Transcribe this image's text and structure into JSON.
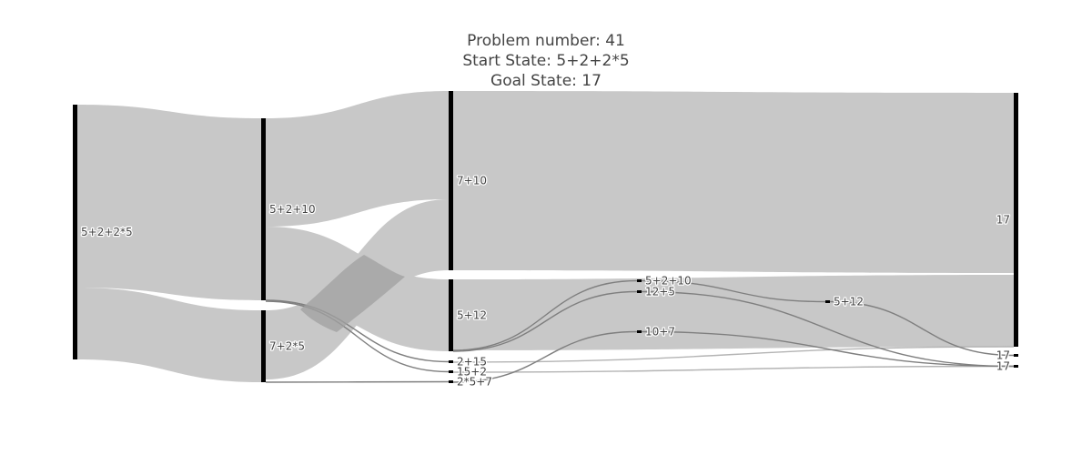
{
  "chart_data": {
    "type": "sankey",
    "title_lines": [
      "Problem number: 41",
      "Start State: 5+2+2*5",
      "Goal State: 17"
    ],
    "colors": {
      "node": "#000000",
      "link": "#c8c8c8",
      "link_highlight": "#a0a0a0",
      "link_thin": "#7f7f7f",
      "text": "#444444",
      "background": "#ffffff"
    },
    "nodes": [
      {
        "id": "n0",
        "label": "5+2+2*5",
        "stage": 0
      },
      {
        "id": "n1",
        "label": "5+2+10",
        "stage": 1
      },
      {
        "id": "n2",
        "label": "7+2*5",
        "stage": 1
      },
      {
        "id": "n3",
        "label": "7+10",
        "stage": 2
      },
      {
        "id": "n4",
        "label": "5+12",
        "stage": 2
      },
      {
        "id": "n5",
        "label": "2+15",
        "stage": 2
      },
      {
        "id": "n6",
        "label": "15+2",
        "stage": 2
      },
      {
        "id": "n7",
        "label": "2*5+7",
        "stage": 2
      },
      {
        "id": "n8",
        "label": "5+2+10",
        "stage": 3
      },
      {
        "id": "n9",
        "label": "12+5",
        "stage": 3
      },
      {
        "id": "n10",
        "label": "10+7",
        "stage": 3
      },
      {
        "id": "n11",
        "label": "5+12",
        "stage": 4
      },
      {
        "id": "n12",
        "label": "17",
        "stage": 5
      },
      {
        "id": "n13",
        "label": "17",
        "stage": 5
      },
      {
        "id": "n14",
        "label": "17",
        "stage": 5
      }
    ],
    "links": [
      {
        "source": "n0",
        "target": "n1",
        "value": 200
      },
      {
        "source": "n0",
        "target": "n2",
        "value": 78
      },
      {
        "source": "n1",
        "target": "n3",
        "value": 120
      },
      {
        "source": "n1",
        "target": "n4",
        "value": 80
      },
      {
        "source": "n2",
        "target": "n3",
        "value": 75
      },
      {
        "source": "n1",
        "target": "n5",
        "value": 1
      },
      {
        "source": "n1",
        "target": "n6",
        "value": 1
      },
      {
        "source": "n2",
        "target": "n7",
        "value": 1
      },
      {
        "source": "n3",
        "target": "n12",
        "value": 195
      },
      {
        "source": "n4",
        "target": "n12",
        "value": 78
      },
      {
        "source": "n4",
        "target": "n8",
        "value": 1
      },
      {
        "source": "n4",
        "target": "n9",
        "value": 1
      },
      {
        "source": "n5",
        "target": "n12",
        "value": 1
      },
      {
        "source": "n6",
        "target": "n14",
        "value": 1
      },
      {
        "source": "n7",
        "target": "n10",
        "value": 1
      },
      {
        "source": "n8",
        "target": "n11",
        "value": 1
      },
      {
        "source": "n9",
        "target": "n14",
        "value": 1
      },
      {
        "source": "n10",
        "target": "n14",
        "value": 1
      },
      {
        "source": "n11",
        "target": "n13",
        "value": 1
      }
    ]
  }
}
